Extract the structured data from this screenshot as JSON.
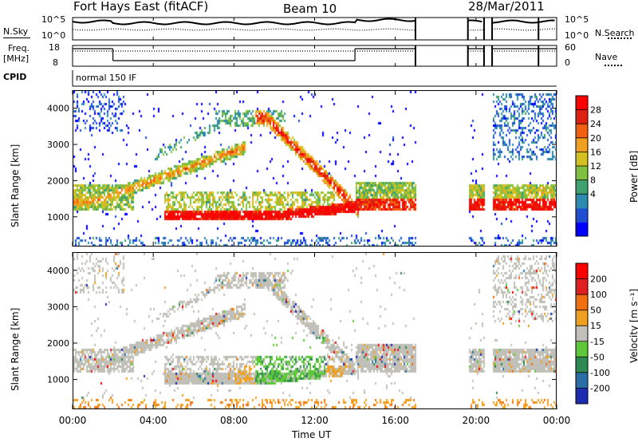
{
  "header": {
    "radar": "Fort Hays East (fitACF)",
    "beam": "Beam 10",
    "date": "28/Mar/2011"
  },
  "top_panels": {
    "nsky_label": "N.Sky",
    "nsky_ticks": [
      "10^5",
      "10^0"
    ],
    "nsearch_label": "N.Search",
    "nsearch_ticks": [
      "10^5",
      "10^0"
    ],
    "freq_label_1": "Freq.",
    "freq_label_2": "[MHz]",
    "freq_ticks": [
      "18",
      "8"
    ],
    "nave_label": "Nave",
    "nave_ticks": [
      "60",
      "0"
    ],
    "cpid_label": "CPID",
    "cpid_text": "normal 150 IF"
  },
  "chart_data": [
    {
      "type": "heatmap",
      "title": "",
      "ylabel": "Slant Range [km]",
      "xlabel": "",
      "x_range_hours": [
        0,
        24
      ],
      "ylim": [
        180,
        4500
      ],
      "yticks": [
        "4000",
        "3000",
        "2000",
        "1000"
      ],
      "colorbar_label": "Power [dB]",
      "colorbar_ticks": [
        "28",
        "24",
        "20",
        "16",
        "12",
        "8",
        "4"
      ],
      "colorbar_colors": [
        "#0000ff",
        "#1f4fd0",
        "#2f8ab0",
        "#3fa070",
        "#80c040",
        "#d4c020",
        "#f0a020",
        "#f06010",
        "#e02010",
        "#ff0000"
      ]
    },
    {
      "type": "heatmap",
      "title": "",
      "ylabel": "Slant Range [km]",
      "xlabel": "Time UT",
      "x_range_hours": [
        0,
        24
      ],
      "ylim": [
        180,
        4500
      ],
      "yticks": [
        "4000",
        "3000",
        "2000",
        "1000"
      ],
      "xticks": [
        "00:00",
        "04:00",
        "08:00",
        "12:00",
        "16:00",
        "20:00",
        "00:00"
      ],
      "colorbar_label": "Velocity [m s⁻¹]",
      "colorbar_ticks": [
        "200",
        "100",
        "50",
        "15",
        "-15",
        "-50",
        "-100",
        "-200"
      ],
      "colorbar_colors": [
        "#1c2cb0",
        "#2a6ea8",
        "#2e8a50",
        "#5ec83a",
        "#c0c0b8",
        "#f0a020",
        "#f07010",
        "#e02020",
        "#ff0000"
      ]
    }
  ]
}
